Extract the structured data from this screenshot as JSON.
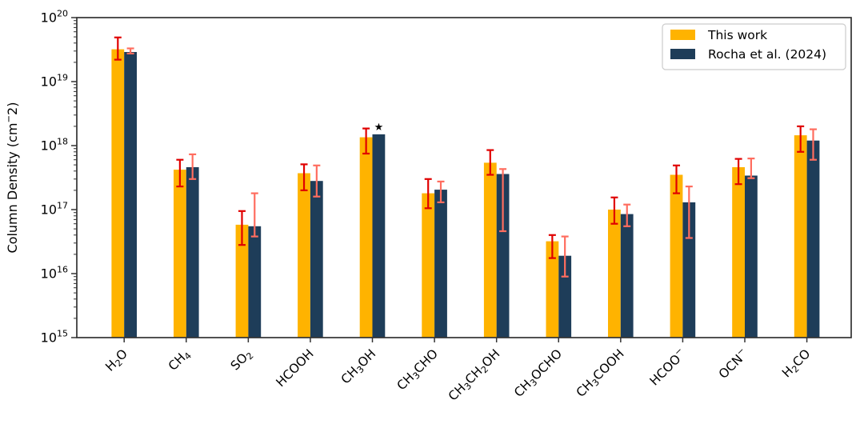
{
  "chart_data": {
    "type": "bar",
    "yscale": "log",
    "ylim": [
      1000000000000000.0,
      1e+20
    ],
    "ylabel": "Column Density (cm^-2)",
    "grid": false,
    "legend": {
      "position": "upper right"
    },
    "categories": [
      "H_2O",
      "CH_4",
      "SO_2",
      "HCOOH",
      "CH_3OH",
      "CH_3CHO",
      "CH_3CH_2OH",
      "CH_3OCHO",
      "CH_3COOH",
      "HCOO^-",
      "OCN^-",
      "H_2CO"
    ],
    "series": [
      {
        "name": "This work",
        "color": "#FFB300",
        "error_color": "#E00000",
        "values": [
          3.2e+19,
          4.2e+17,
          5.8e+16,
          3.7e+17,
          1.35e+18,
          1.8e+17,
          5.4e+17,
          3.2e+16,
          1e+17,
          3.5e+17,
          4.6e+17,
          1.45e+18
        ],
        "err_lo": [
          2.2e+19,
          2.3e+17,
          2.8e+16,
          2e+17,
          7.5e+17,
          1.05e+17,
          3.5e+17,
          1.75e+16,
          6e+16,
          1.8e+17,
          2.5e+17,
          8e+17
        ],
        "err_hi": [
          4.9e+19,
          6e+17,
          9.5e+16,
          5.1e+17,
          1.85e+18,
          3e+17,
          8.5e+17,
          4e+16,
          1.55e+17,
          4.9e+17,
          6.2e+17,
          2e+18
        ]
      },
      {
        "name": "Rocha et al. (2024)",
        "color": "#1E3D59",
        "error_color": "#FF6D5F",
        "values": [
          2.9e+19,
          4.6e+17,
          5.5e+16,
          2.8e+17,
          1.5e+18,
          2.05e+17,
          3.6e+17,
          1.9e+16,
          8.5e+16,
          1.3e+17,
          3.4e+17,
          1.2e+18
        ],
        "err_lo": [
          2.75e+19,
          3e+17,
          3.8e+16,
          1.6e+17,
          null,
          1.3e+17,
          4.6e+16,
          9000000000000000.0,
          5.5e+16,
          3.6e+16,
          3.1e+17,
          6e+17
        ],
        "err_hi": [
          3.3e+19,
          7.3e+17,
          1.8e+17,
          4.9e+17,
          null,
          2.75e+17,
          4.3e+17,
          3.8e+16,
          1.2e+17,
          2.3e+17,
          6.3e+17,
          1.8e+18
        ]
      }
    ],
    "annotations": [
      {
        "type": "significance-star",
        "symbol": "★",
        "category_index": 4,
        "series_index": 1
      }
    ],
    "y_tick_exponents": [
      20,
      19,
      18,
      17,
      16,
      15
    ],
    "axis_color": "#333333"
  }
}
